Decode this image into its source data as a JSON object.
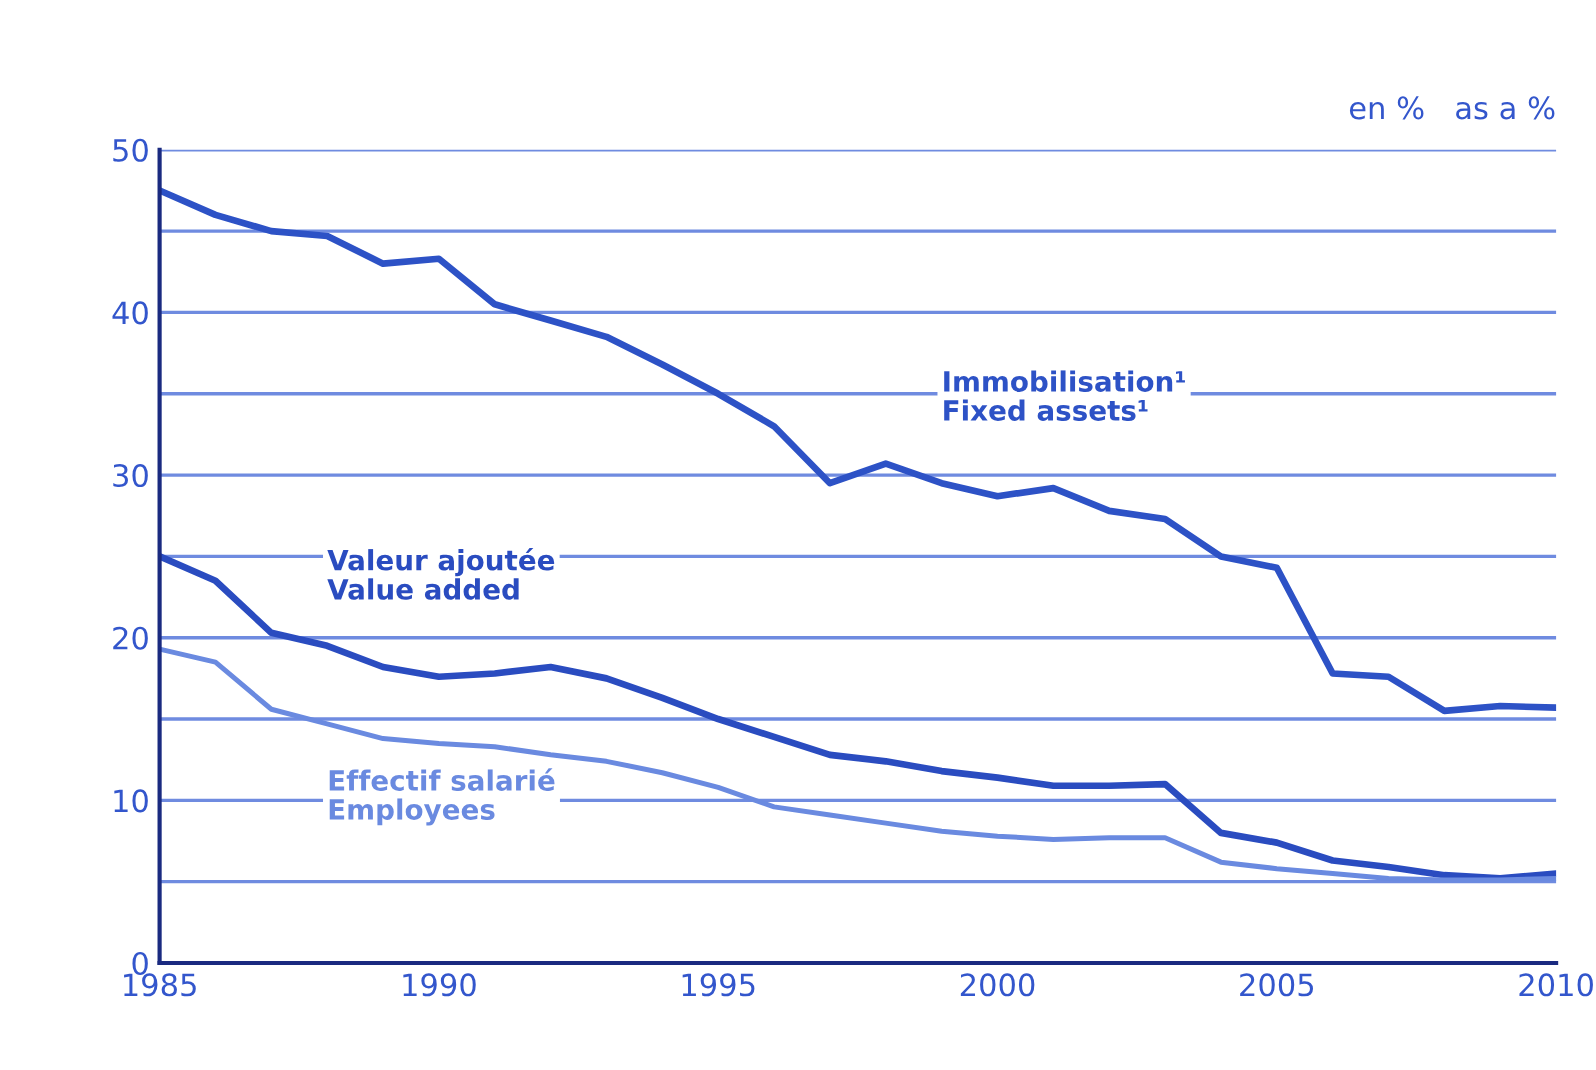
{
  "chart_data": {
    "type": "line",
    "x": [
      1985,
      1986,
      1987,
      1988,
      1989,
      1990,
      1991,
      1992,
      1993,
      1994,
      1995,
      1996,
      1997,
      1998,
      1999,
      2000,
      2001,
      2002,
      2003,
      2004,
      2005,
      2006,
      2007,
      2008,
      2009,
      2010
    ],
    "series": [
      {
        "name": "Immobilisation¹\nFixed assets¹",
        "color": "#2d52c6",
        "values": [
          47.5,
          46,
          45,
          44.7,
          43,
          43.3,
          40.5,
          39.5,
          38.5,
          36.8,
          35,
          33,
          29.5,
          30.7,
          29.5,
          28.7,
          29.2,
          27.8,
          27.3,
          25,
          24.3,
          17.8,
          17.6,
          15.5,
          15.8,
          15.7
        ]
      },
      {
        "name": "Valeur ajoutée\nValue added",
        "color": "#2a4cc0",
        "values": [
          25,
          23.5,
          20.3,
          19.5,
          18.2,
          17.6,
          17.8,
          18.2,
          17.5,
          16.3,
          15,
          13.9,
          12.8,
          12.4,
          11.8,
          11.4,
          10.9,
          10.9,
          11,
          8,
          7.4,
          6.3,
          5.9,
          5.4,
          5.2,
          5.5
        ]
      },
      {
        "name": "Effectif salarié\nEmployees",
        "color": "#6a8ae0",
        "values": [
          19.3,
          18.5,
          15.6,
          14.7,
          13.8,
          13.5,
          13.3,
          12.8,
          12.4,
          11.7,
          10.8,
          9.6,
          9.1,
          8.6,
          8.1,
          7.8,
          7.6,
          7.7,
          7.7,
          6.2,
          5.8,
          5.5,
          5.2,
          5.1,
          5.1,
          5.2
        ]
      }
    ],
    "xlim": [
      1985,
      2010
    ],
    "xticks": [
      1985,
      1990,
      1995,
      2000,
      2005,
      2010
    ],
    "ylim": [
      0,
      50
    ],
    "yticks": [
      0,
      {
        "value": 5,
        "label": null
      },
      10,
      {
        "value": 15,
        "label": null
      },
      20,
      {
        "value": 25,
        "label": null
      },
      30,
      {
        "value": 35,
        "label": null
      },
      40,
      {
        "value": 45,
        "label": null
      },
      50
    ],
    "grid": "y",
    "legend": false,
    "annotations": [
      "en %   as a %"
    ]
  }
}
